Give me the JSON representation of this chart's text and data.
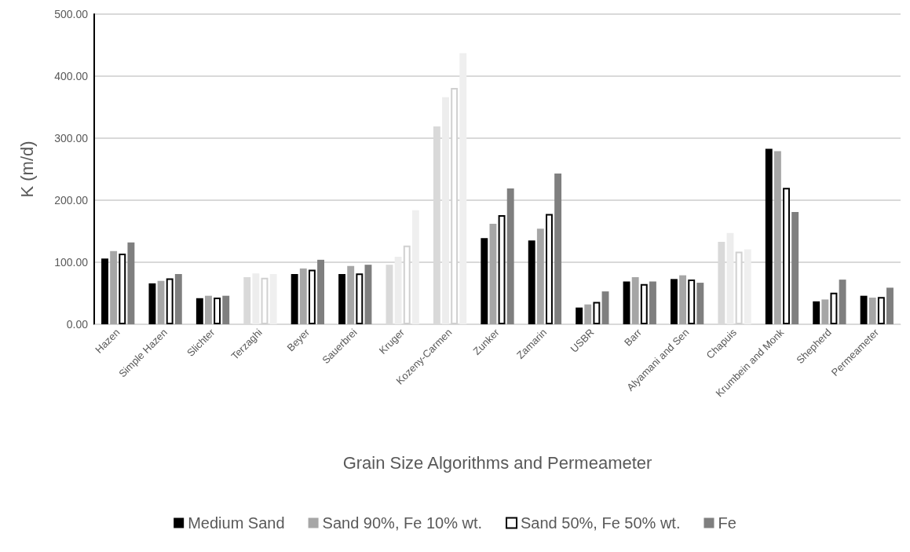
{
  "chart_data": {
    "type": "bar",
    "xlabel": "Grain Size Algorithms and Permeameter",
    "ylabel": "K (m/d)",
    "categories": [
      "Hazen",
      "Simple Hazen",
      "Slichter",
      "Terzaghi",
      "Beyer",
      "Sauerbrei",
      "Kruger",
      "Kozeny-Carmen",
      "Zunker",
      "Zamarin",
      "USBR",
      "Barr",
      "Alyamani and Sen",
      "Chapuis",
      "Krumbein and Monk",
      "Shepherd",
      "Permeameter"
    ],
    "series": [
      {
        "name": "Medium Sand",
        "color": "#000000",
        "colors": [
          "#000000",
          "#000000",
          "#000000",
          "#d9d9d9",
          "#000000",
          "#000000",
          "#d9d9d9",
          "#d9d9d9",
          "#000000",
          "#000000",
          "#000000",
          "#000000",
          "#000000",
          "#d9d9d9",
          "#000000",
          "#000000",
          "#000000"
        ],
        "values": [
          106,
          66,
          42,
          76,
          81,
          81,
          96,
          319,
          139,
          135,
          27,
          69,
          73,
          133,
          283,
          37,
          46
        ]
      },
      {
        "name": "Sand 90%, Fe 10% wt.",
        "color": "#a6a6a6",
        "colors": [
          "#a6a6a6",
          "#a6a6a6",
          "#a6a6a6",
          "#ededed",
          "#a6a6a6",
          "#a6a6a6",
          "#ededed",
          "#ededed",
          "#a6a6a6",
          "#a6a6a6",
          "#a6a6a6",
          "#a6a6a6",
          "#a6a6a6",
          "#ededed",
          "#a6a6a6",
          "#a6a6a6",
          "#a6a6a6"
        ],
        "values": [
          118,
          70,
          46,
          82,
          90,
          94,
          109,
          366,
          162,
          154,
          32,
          76,
          79,
          147,
          279,
          40,
          43
        ]
      },
      {
        "name": "Sand 50%, Fe 50% wt.",
        "color": "#ffffff",
        "colors": [
          "#ffffff",
          "#ffffff",
          "#ffffff",
          "#fefefe",
          "#ffffff",
          "#ffffff",
          "#fefefe",
          "#fefefe",
          "#ffffff",
          "#ffffff",
          "#ffffff",
          "#ffffff",
          "#ffffff",
          "#fefefe",
          "#ffffff",
          "#ffffff",
          "#ffffff"
        ],
        "values": [
          114,
          74,
          43,
          75,
          88,
          82,
          127,
          381,
          176,
          178,
          36,
          65,
          72,
          117,
          220,
          51,
          44
        ]
      },
      {
        "name": "Fe",
        "color": "#7f7f7f",
        "colors": [
          "#7f7f7f",
          "#7f7f7f",
          "#7f7f7f",
          "#efefef",
          "#7f7f7f",
          "#7f7f7f",
          "#efefef",
          "#efefef",
          "#7f7f7f",
          "#7f7f7f",
          "#7f7f7f",
          "#7f7f7f",
          "#7f7f7f",
          "#efefef",
          "#7f7f7f",
          "#7f7f7f",
          "#7f7f7f"
        ],
        "values": [
          132,
          81,
          46,
          81,
          104,
          96,
          184,
          437,
          219,
          243,
          53,
          69,
          67,
          121,
          181,
          72,
          59
        ]
      }
    ],
    "ylim": [
      0,
      500
    ],
    "yticks": [
      {
        "value": 0,
        "label": "0.00"
      },
      {
        "value": 100,
        "label": "100.00"
      },
      {
        "value": 200,
        "label": "200.00"
      },
      {
        "value": 300,
        "label": "300.00"
      },
      {
        "value": 400,
        "label": "400.00"
      },
      {
        "value": 500,
        "label": "500.00"
      }
    ],
    "grid": "y",
    "legend": "bottom"
  }
}
